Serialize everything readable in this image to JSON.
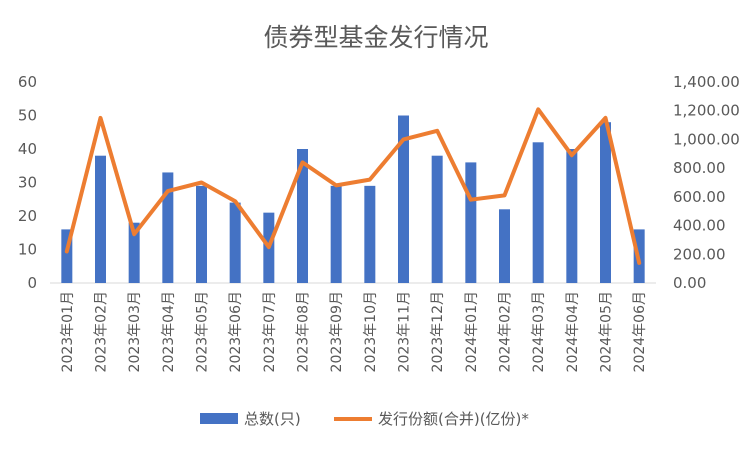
{
  "chart_data": {
    "type": "bar+line",
    "title": "债券型基金发行情况",
    "categories": [
      "2023年01月",
      "2023年02月",
      "2023年03月",
      "2023年04月",
      "2023年05月",
      "2023年06月",
      "2023年07月",
      "2023年08月",
      "2023年09月",
      "2023年10月",
      "2023年11月",
      "2023年12月",
      "2024年01月",
      "2024年02月",
      "2024年03月",
      "2024年04月",
      "2024年05月",
      "2024年06月"
    ],
    "series": [
      {
        "name": "总数(只)",
        "type": "bar",
        "axis": "left",
        "color": "#4472C4",
        "values": [
          16,
          38,
          18,
          33,
          29,
          24,
          21,
          40,
          29,
          29,
          50,
          38,
          36,
          22,
          42,
          40,
          48,
          16
        ]
      },
      {
        "name": "发行份额(合并)(亿份)*",
        "type": "line",
        "axis": "right",
        "color": "#ED7D31",
        "values": [
          220,
          1150,
          340,
          640,
          700,
          570,
          250,
          840,
          680,
          720,
          1000,
          1060,
          580,
          610,
          1210,
          890,
          1150,
          140
        ]
      }
    ],
    "y_left": {
      "min": 0,
      "max": 60,
      "ticks": [
        "0",
        "10",
        "20",
        "30",
        "40",
        "50",
        "60"
      ]
    },
    "y_right": {
      "min": 0,
      "max": 1400,
      "ticks": [
        "0.00",
        "200.00",
        "400.00",
        "600.00",
        "800.00",
        "1,000.00",
        "1,200.00",
        "1,400.00"
      ]
    },
    "legend_position": "bottom",
    "grid": false
  }
}
